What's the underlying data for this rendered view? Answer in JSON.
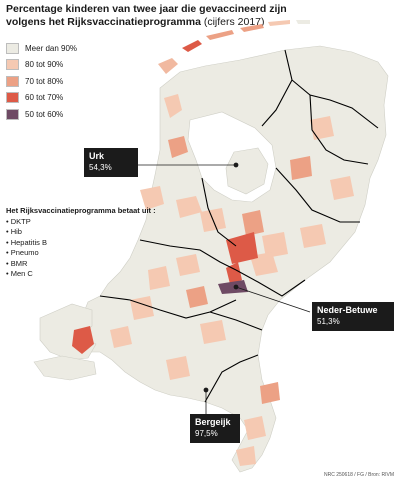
{
  "title": {
    "main": "Percentage kinderen van twee jaar die gevaccineerd zijn volgens het Rijksvaccinatieprogramma",
    "sub": "(cijfers 2017)"
  },
  "legend": [
    {
      "label": "Meer dan 90%",
      "color": "#ecebe3"
    },
    {
      "label": "80 tot 90%",
      "color": "#f5c9b2"
    },
    {
      "label": "70 tot 80%",
      "color": "#eca185"
    },
    {
      "label": "60 tot 70%",
      "color": "#dd5a47"
    },
    {
      "label": "50 tot 60%",
      "color": "#6e4a64"
    }
  ],
  "callouts": {
    "urk": {
      "name": "Urk",
      "value": "54,3%"
    },
    "nederbetuwe": {
      "name": "Neder-Betuwe",
      "value": "51,3%"
    },
    "bergeijk": {
      "name": "Bergeijk",
      "value": "97,5%"
    }
  },
  "program": {
    "heading": "Het Rijksvaccinatieprogramma betaat uit :",
    "items": [
      "DKTP",
      "Hib",
      "Hepatitis B",
      "Pneumo",
      "BMR",
      "Men C"
    ]
  },
  "source": "NRC 250618 / FG / Bron: RIVM",
  "colors": {
    "province_border": "#000000",
    "municipality_border": "#ffffff",
    "map_fill": "#ecebe3"
  }
}
